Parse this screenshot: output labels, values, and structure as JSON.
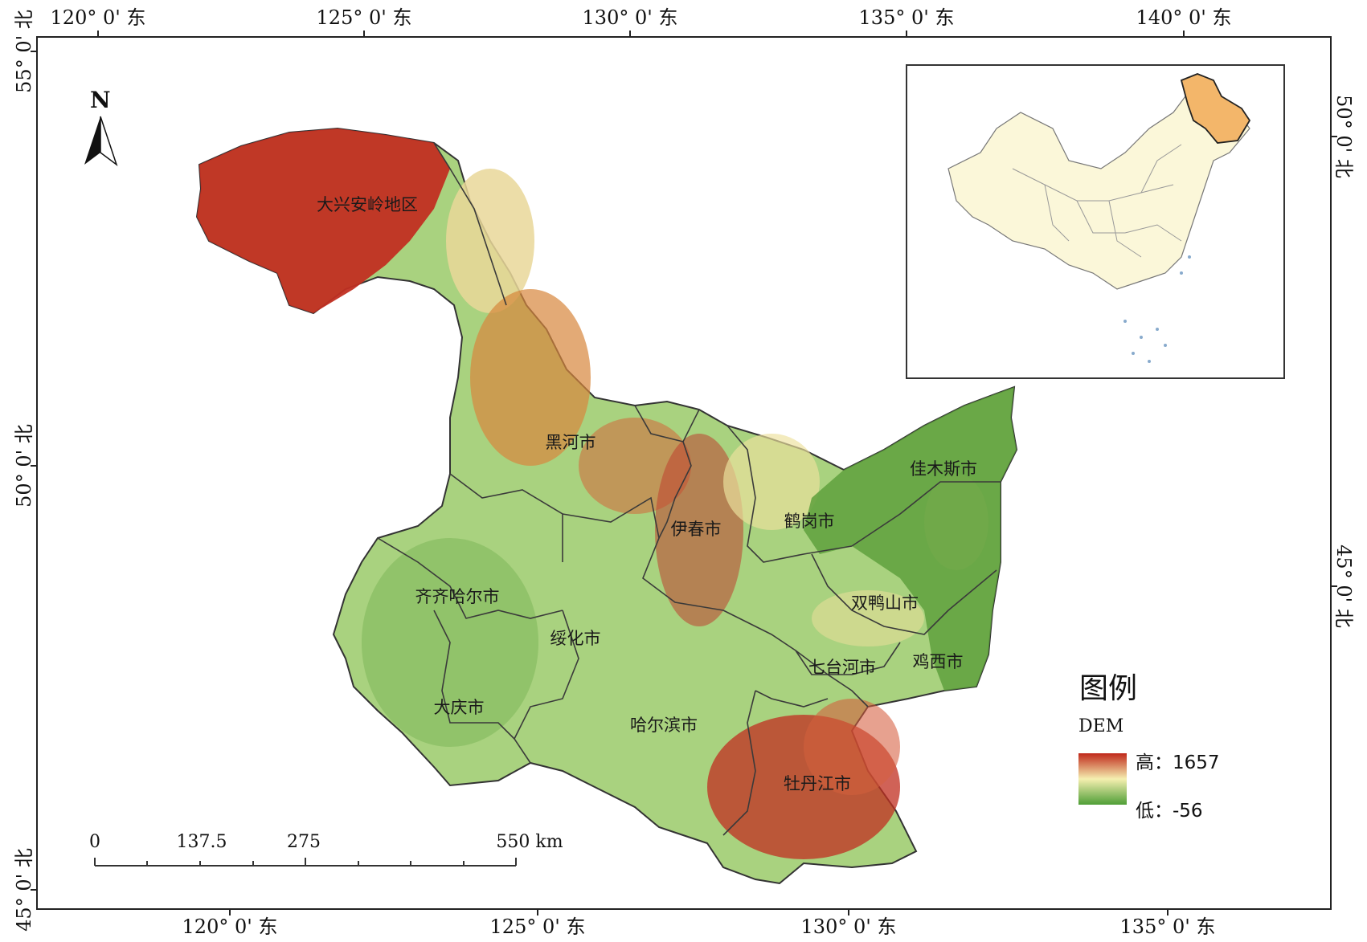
{
  "graticule": {
    "top": [
      "120° 0' 东",
      "125° 0' 东",
      "130° 0' 东",
      "135° 0' 东",
      "140° 0' 东"
    ],
    "bottom": [
      "120° 0' 东",
      "125° 0' 东",
      "130° 0' 东",
      "135° 0' 东"
    ],
    "left": [
      "55° 0' 北",
      "50° 0' 北",
      "45° 0' 北"
    ],
    "right": [
      "50° 0' 北",
      "45° 0' 北"
    ]
  },
  "north_arrow": {
    "label": "N"
  },
  "regions": [
    "大兴安岭地区",
    "黑河市",
    "伊春市",
    "鹤岗市",
    "佳木斯市",
    "齐齐哈尔市",
    "绥化市",
    "双鸭山市",
    "大庆市",
    "七台河市",
    "鸡西市",
    "哈尔滨市",
    "牡丹江市"
  ],
  "scale_bar": {
    "ticks": [
      "0",
      "137.5",
      "275",
      "550 km"
    ]
  },
  "legend": {
    "title": "图例",
    "subtitle": "DEM",
    "high": "高：1657",
    "low": "低：-56",
    "colors": {
      "high": "#c0281a",
      "mid": "#f5efb0",
      "low": "#4f9e36"
    }
  },
  "inset": {
    "highlight_color": "#f3b66a",
    "land_color": "#fbf7d9"
  }
}
